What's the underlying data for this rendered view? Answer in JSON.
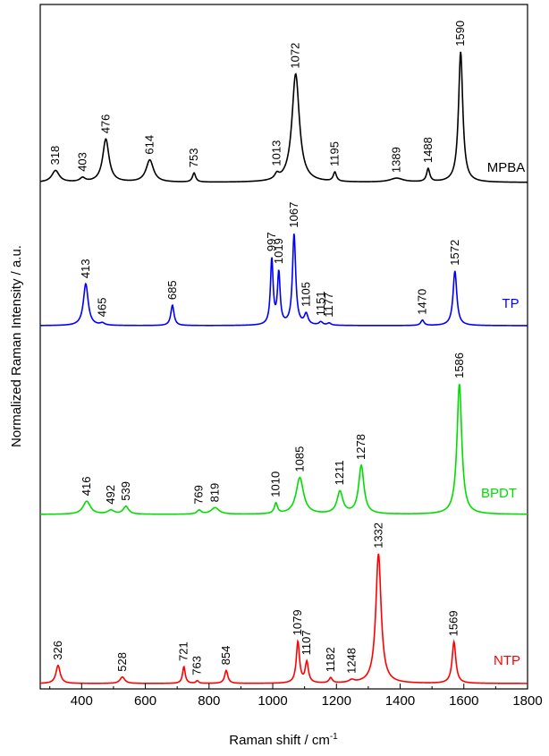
{
  "chart_data": {
    "type": "line",
    "xlabel": "Raman shift / cm",
    "xlabel_sup": "-1",
    "ylabel": "Normalized Raman Intensity / a.u.",
    "xlim": [
      270,
      1800
    ],
    "x_ticks": [
      400,
      600,
      800,
      1000,
      1200,
      1400,
      1600,
      1800
    ],
    "y_ticks_shown": false,
    "grid": false,
    "legend": "none",
    "series": [
      {
        "name": "MPBA",
        "color": "#000000",
        "peaks": [
          {
            "x": 318,
            "label": "318",
            "h": 0.09,
            "w": 14
          },
          {
            "x": 403,
            "label": "403",
            "h": 0.03,
            "w": 10
          },
          {
            "x": 476,
            "label": "476",
            "h": 0.33,
            "w": 12
          },
          {
            "x": 614,
            "label": "614",
            "h": 0.17,
            "w": 14
          },
          {
            "x": 753,
            "label": "753",
            "h": 0.07,
            "w": 6
          },
          {
            "x": 1013,
            "label": "1013",
            "h": 0.04,
            "w": 8
          },
          {
            "x": 1072,
            "label": "1072",
            "h": 0.83,
            "w": 14
          },
          {
            "x": 1195,
            "label": "1195",
            "h": 0.07,
            "w": 6
          },
          {
            "x": 1389,
            "label": "1389",
            "h": 0.03,
            "w": 25
          },
          {
            "x": 1488,
            "label": "1488",
            "h": 0.1,
            "w": 6
          },
          {
            "x": 1590,
            "label": "1590",
            "h": 1.0,
            "w": 8
          }
        ]
      },
      {
        "name": "TP",
        "color": "#0000ff",
        "peaks": [
          {
            "x": 413,
            "label": "413",
            "h": 0.39,
            "w": 9
          },
          {
            "x": 465,
            "label": "465",
            "h": 0.02,
            "w": 8
          },
          {
            "x": 685,
            "label": "685",
            "h": 0.19,
            "w": 6
          },
          {
            "x": 997,
            "label": "997",
            "h": 0.61,
            "w": 5
          },
          {
            "x": 1019,
            "label": "1019",
            "h": 0.48,
            "w": 5
          },
          {
            "x": 1067,
            "label": "1067",
            "h": 0.85,
            "w": 6
          },
          {
            "x": 1105,
            "label": "1105",
            "h": 0.1,
            "w": 7
          },
          {
            "x": 1151,
            "label": "1151",
            "h": 0.03,
            "w": 7
          },
          {
            "x": 1177,
            "label": "1177",
            "h": 0.02,
            "w": 7
          },
          {
            "x": 1470,
            "label": "1470",
            "h": 0.05,
            "w": 6
          },
          {
            "x": 1572,
            "label": "1572",
            "h": 0.51,
            "w": 7
          }
        ]
      },
      {
        "name": "BPDT",
        "color": "#00dd00",
        "peaks": [
          {
            "x": 416,
            "label": "416",
            "h": 0.1,
            "w": 14
          },
          {
            "x": 492,
            "label": "492",
            "h": 0.03,
            "w": 12
          },
          {
            "x": 539,
            "label": "539",
            "h": 0.06,
            "w": 10
          },
          {
            "x": 769,
            "label": "769",
            "h": 0.03,
            "w": 8
          },
          {
            "x": 819,
            "label": "819",
            "h": 0.05,
            "w": 15
          },
          {
            "x": 1010,
            "label": "1010",
            "h": 0.08,
            "w": 6
          },
          {
            "x": 1085,
            "label": "1085",
            "h": 0.28,
            "w": 14
          },
          {
            "x": 1211,
            "label": "1211",
            "h": 0.17,
            "w": 11
          },
          {
            "x": 1278,
            "label": "1278",
            "h": 0.37,
            "w": 10
          },
          {
            "x": 1586,
            "label": "1586",
            "h": 1.0,
            "w": 9
          }
        ]
      },
      {
        "name": "NTP",
        "color": "#ff0000",
        "peaks": [
          {
            "x": 326,
            "label": "326",
            "h": 0.14,
            "w": 8
          },
          {
            "x": 528,
            "label": "528",
            "h": 0.05,
            "w": 9
          },
          {
            "x": 721,
            "label": "721",
            "h": 0.13,
            "w": 5
          },
          {
            "x": 763,
            "label": "763",
            "h": 0.02,
            "w": 5
          },
          {
            "x": 854,
            "label": "854",
            "h": 0.1,
            "w": 6
          },
          {
            "x": 1079,
            "label": "1079",
            "h": 0.32,
            "w": 6
          },
          {
            "x": 1107,
            "label": "1107",
            "h": 0.16,
            "w": 6
          },
          {
            "x": 1182,
            "label": "1182",
            "h": 0.04,
            "w": 6
          },
          {
            "x": 1248,
            "label": "1248",
            "h": 0.02,
            "w": 10
          },
          {
            "x": 1332,
            "label": "1332",
            "h": 1.0,
            "w": 10
          },
          {
            "x": 1569,
            "label": "1569",
            "h": 0.32,
            "w": 7
          }
        ]
      }
    ]
  }
}
